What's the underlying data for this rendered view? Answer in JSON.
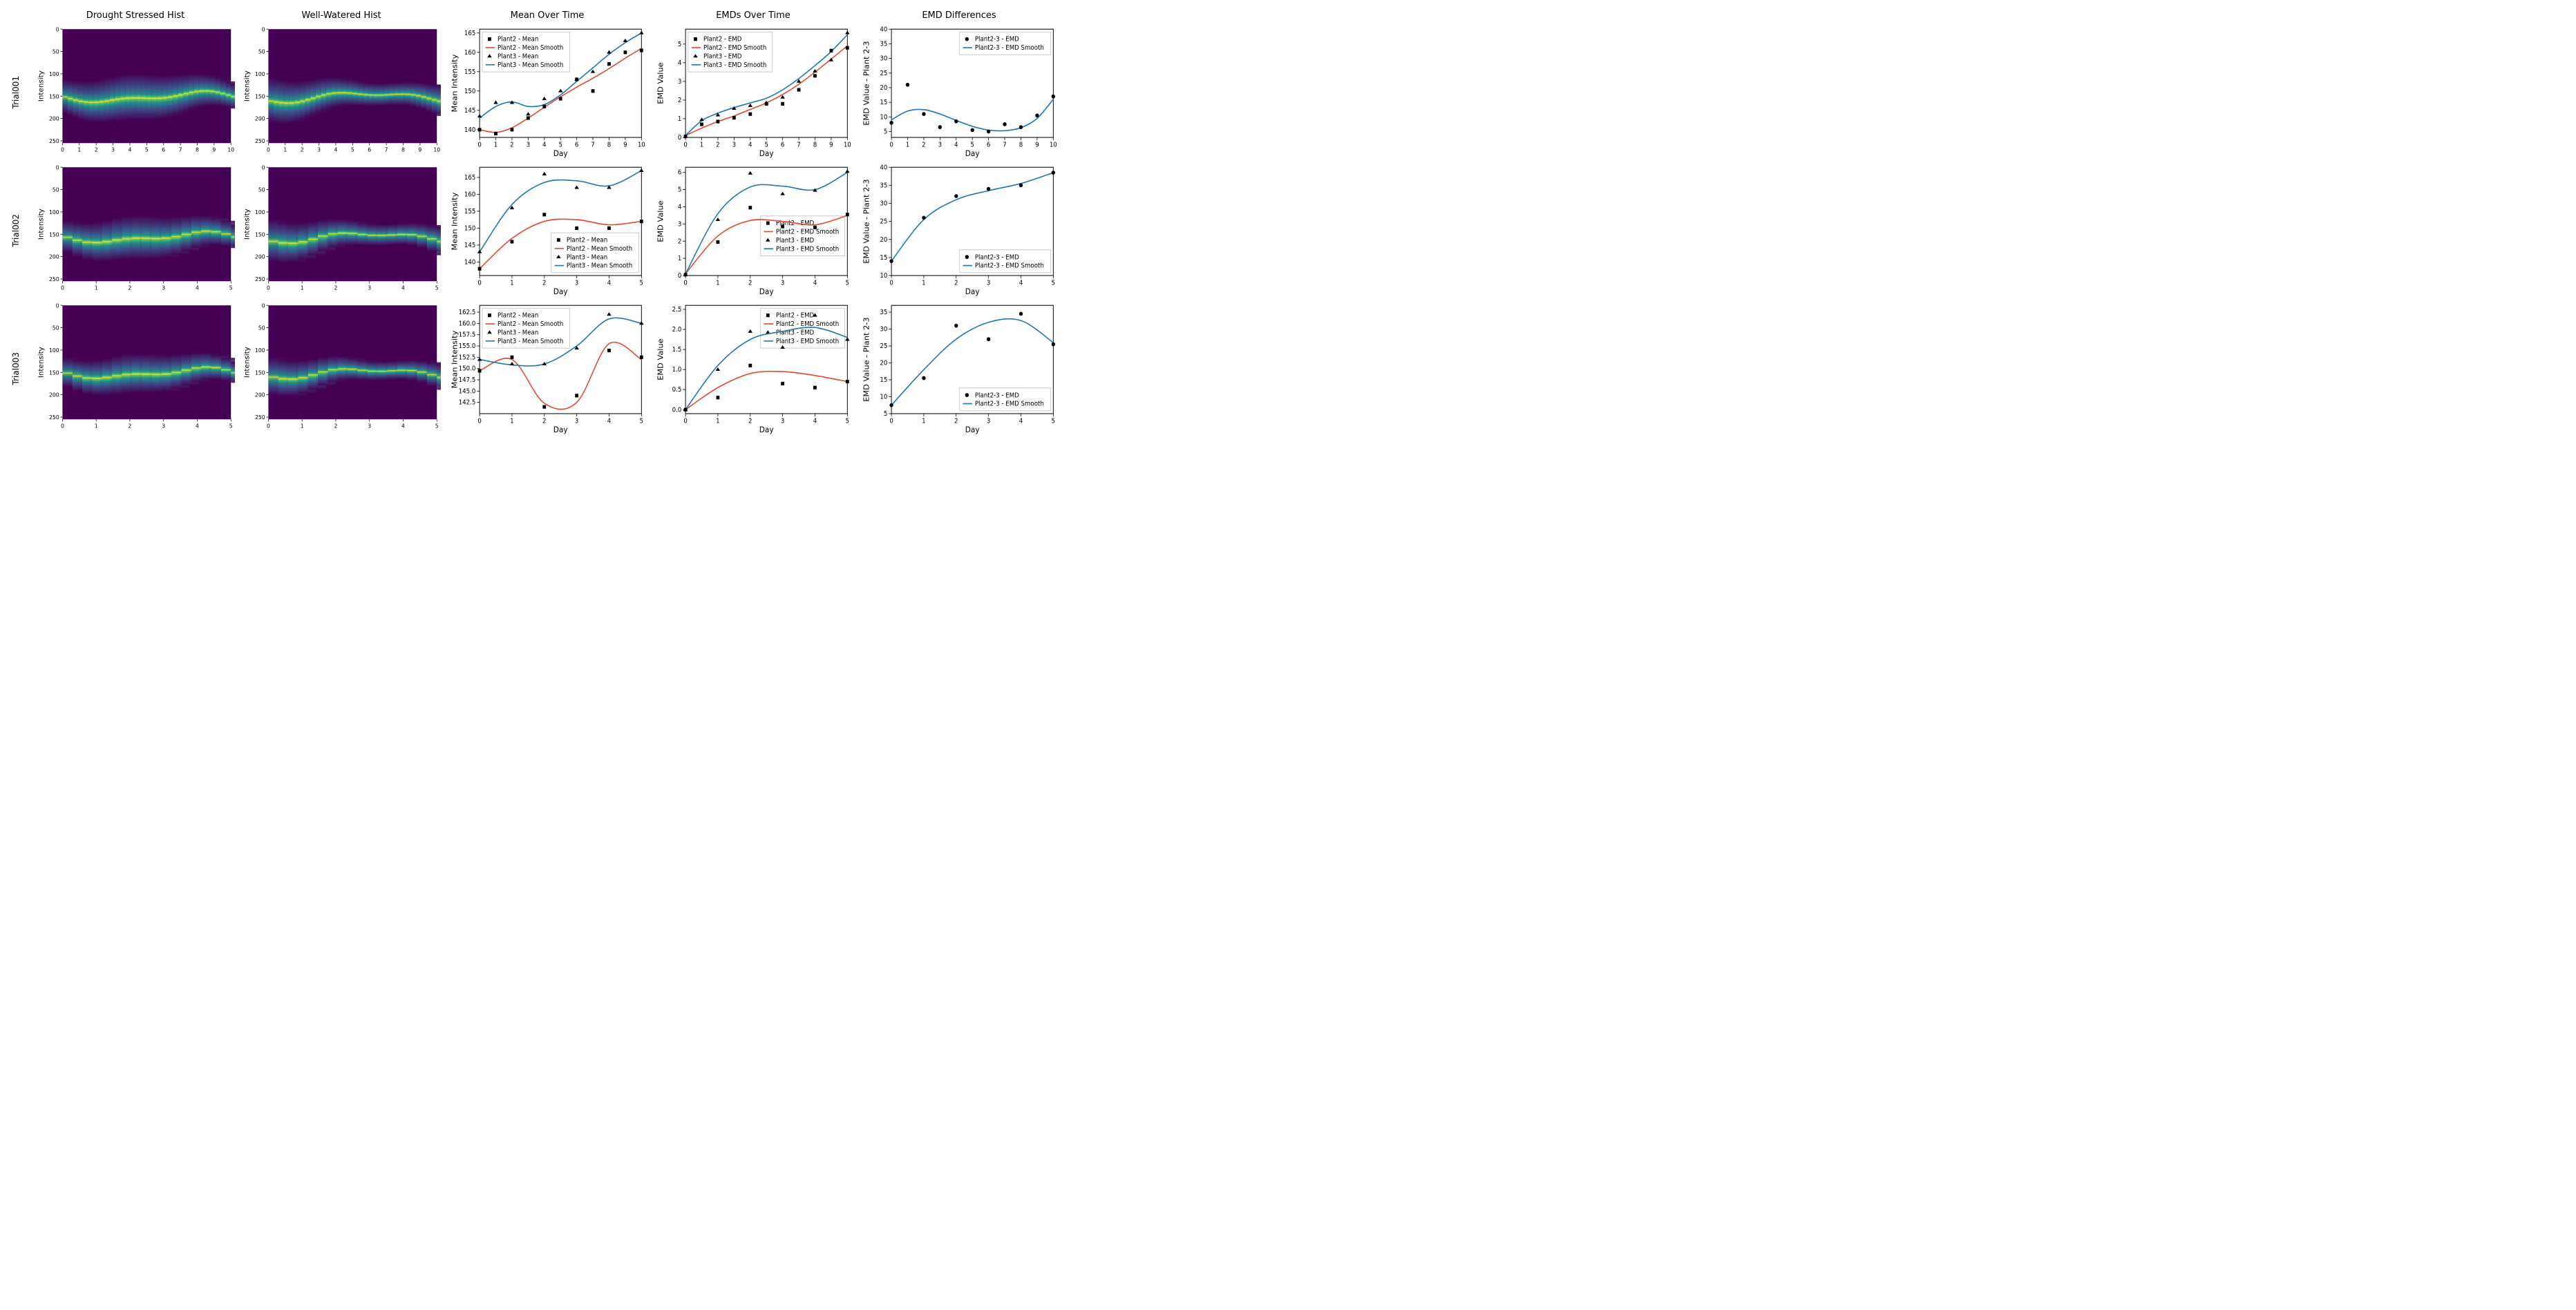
{
  "colors": {
    "background": "#ffffff",
    "text": "#000000",
    "frame": "#000000",
    "red": "#e24a33",
    "blue": "#1f77b4",
    "legend_border": "#bfbfbf",
    "viridis_bg": "#440154",
    "viridis_mid": "#21918c",
    "viridis_hi": "#fde725"
  },
  "col_titles": [
    "Drought Stressed Hist",
    "Well-Watered Hist",
    "Mean Over Time",
    "EMDs Over Time",
    "EMD Differences"
  ],
  "rows": [
    {
      "label": "Trial001",
      "days": 10,
      "heatmap": {
        "ylabel": "Intensity",
        "ylim": [
          0,
          255
        ],
        "yticks": [
          0,
          50,
          100,
          150,
          200,
          250
        ],
        "band_center": 150,
        "band_spread": 45
      },
      "mean": {
        "xlabel": "Day",
        "ylabel": "Mean Intensity",
        "xlim": [
          0,
          10
        ],
        "ylim": [
          138,
          166
        ],
        "yticks": [
          140,
          145,
          150,
          155,
          160,
          165
        ],
        "p2_points": [
          [
            0,
            140
          ],
          [
            1,
            139
          ],
          [
            2,
            140
          ],
          [
            3,
            143
          ],
          [
            4,
            146
          ],
          [
            5,
            148
          ],
          [
            6,
            153
          ],
          [
            7,
            150
          ],
          [
            8,
            157
          ],
          [
            9,
            160
          ],
          [
            10,
            160.5
          ]
        ],
        "p3_points": [
          [
            0,
            143.5
          ],
          [
            1,
            147
          ],
          [
            2,
            147
          ],
          [
            3,
            144
          ],
          [
            4,
            148
          ],
          [
            5,
            150
          ],
          [
            6,
            153
          ],
          [
            7,
            155
          ],
          [
            8,
            160
          ],
          [
            9,
            163
          ],
          [
            10,
            165
          ]
        ],
        "p2_smooth": [
          [
            0,
            140
          ],
          [
            1,
            139.3
          ],
          [
            2,
            140.5
          ],
          [
            3,
            143
          ],
          [
            4,
            145.8
          ],
          [
            5,
            148.5
          ],
          [
            6,
            151
          ],
          [
            7,
            153.3
          ],
          [
            8,
            155.8
          ],
          [
            9,
            158.5
          ],
          [
            10,
            161
          ]
        ],
        "p3_smooth": [
          [
            0,
            143
          ],
          [
            1,
            146
          ],
          [
            2,
            147.2
          ],
          [
            3,
            146
          ],
          [
            4,
            146.5
          ],
          [
            5,
            149
          ],
          [
            6,
            152.5
          ],
          [
            7,
            156
          ],
          [
            8,
            159.5
          ],
          [
            9,
            162.5
          ],
          [
            10,
            165
          ]
        ],
        "legend": [
          "Plant2 - Mean",
          "Plant2 - Mean Smooth",
          "Plant3 - Mean",
          "Plant3 - Mean Smooth"
        ],
        "legend_pos": "top-left"
      },
      "emd": {
        "xlabel": "Day",
        "ylabel": "EMD Value",
        "xlim": [
          0,
          10
        ],
        "ylim": [
          0,
          5.8
        ],
        "yticks": [
          0,
          1,
          2,
          3,
          4,
          5
        ],
        "p2_points": [
          [
            0,
            0.05
          ],
          [
            1,
            0.7
          ],
          [
            2,
            0.85
          ],
          [
            3,
            1.05
          ],
          [
            4,
            1.25
          ],
          [
            5,
            1.8
          ],
          [
            6,
            1.8
          ],
          [
            7,
            2.55
          ],
          [
            8,
            3.3
          ],
          [
            9,
            4.65
          ],
          [
            10,
            4.8
          ]
        ],
        "p3_points": [
          [
            0,
            0.05
          ],
          [
            1,
            0.95
          ],
          [
            2,
            1.2
          ],
          [
            3,
            1.55
          ],
          [
            4,
            1.7
          ],
          [
            5,
            1.85
          ],
          [
            6,
            2.15
          ],
          [
            7,
            3.0
          ],
          [
            8,
            3.55
          ],
          [
            9,
            4.15
          ],
          [
            10,
            5.6
          ]
        ],
        "p2_smooth": [
          [
            0,
            0.1
          ],
          [
            1,
            0.5
          ],
          [
            2,
            0.85
          ],
          [
            3,
            1.15
          ],
          [
            4,
            1.5
          ],
          [
            5,
            1.85
          ],
          [
            6,
            2.3
          ],
          [
            7,
            2.85
          ],
          [
            8,
            3.5
          ],
          [
            9,
            4.2
          ],
          [
            10,
            4.9
          ]
        ],
        "p3_smooth": [
          [
            0,
            0.1
          ],
          [
            1,
            0.9
          ],
          [
            2,
            1.3
          ],
          [
            3,
            1.6
          ],
          [
            4,
            1.85
          ],
          [
            5,
            2.1
          ],
          [
            6,
            2.55
          ],
          [
            7,
            3.15
          ],
          [
            8,
            3.85
          ],
          [
            9,
            4.6
          ],
          [
            10,
            5.5
          ]
        ],
        "legend": [
          "Plant2 - EMD",
          "Plant2 - EMD Smooth",
          "Plant3 - EMD",
          "Plant3 - EMD Smooth"
        ],
        "legend_pos": "top-left"
      },
      "diff": {
        "xlabel": "Day",
        "ylabel": "EMD Value - Plant 2-3",
        "xlim": [
          0,
          10
        ],
        "ylim": [
          3,
          40
        ],
        "yticks": [
          5,
          10,
          15,
          20,
          25,
          30,
          35,
          40
        ],
        "points": [
          [
            0,
            8
          ],
          [
            1,
            21
          ],
          [
            2,
            11
          ],
          [
            3,
            6.5
          ],
          [
            4,
            8.5
          ],
          [
            5,
            5.5
          ],
          [
            6,
            5
          ],
          [
            7,
            7.5
          ],
          [
            8,
            6.5
          ],
          [
            9,
            10.5
          ],
          [
            10,
            17
          ]
        ],
        "smooth": [
          [
            0,
            9
          ],
          [
            1,
            12
          ],
          [
            2,
            12.5
          ],
          [
            3,
            11
          ],
          [
            4,
            8.8
          ],
          [
            5,
            6.8
          ],
          [
            6,
            5.5
          ],
          [
            7,
            5.3
          ],
          [
            8,
            6.3
          ],
          [
            9,
            9.5
          ],
          [
            10,
            16
          ]
        ],
        "legend": [
          "Plant2-3 - EMD",
          "Plant2-3 - EMD Smooth"
        ],
        "legend_pos": "top-right"
      }
    },
    {
      "label": "Trial002",
      "days": 5,
      "heatmap": {
        "ylabel": "Intensity",
        "ylim": [
          0,
          255
        ],
        "yticks": [
          0,
          50,
          100,
          150,
          200,
          250
        ],
        "band_center": 155,
        "band_spread": 42
      },
      "mean": {
        "xlabel": "Day",
        "ylabel": "Mean Intensity",
        "xlim": [
          0,
          5
        ],
        "ylim": [
          136,
          168
        ],
        "yticks": [
          140,
          145,
          150,
          155,
          160,
          165
        ],
        "p2_points": [
          [
            0,
            138
          ],
          [
            1,
            146
          ],
          [
            2,
            154
          ],
          [
            3,
            150
          ],
          [
            4,
            150
          ],
          [
            5,
            152
          ]
        ],
        "p3_points": [
          [
            0,
            143
          ],
          [
            1,
            156
          ],
          [
            2,
            166
          ],
          [
            3,
            162
          ],
          [
            4,
            162
          ],
          [
            5,
            167
          ]
        ],
        "p2_smooth": [
          [
            0,
            138
          ],
          [
            1,
            147
          ],
          [
            2,
            152
          ],
          [
            3,
            152.5
          ],
          [
            4,
            151
          ],
          [
            5,
            152
          ]
        ],
        "p3_smooth": [
          [
            0,
            143
          ],
          [
            1,
            157
          ],
          [
            2,
            163.5
          ],
          [
            3,
            164
          ],
          [
            4,
            162.5
          ],
          [
            5,
            167
          ]
        ],
        "legend": [
          "Plant2 - Mean",
          "Plant2 - Mean Smooth",
          "Plant3 - Mean",
          "Plant3 - Mean Smooth"
        ],
        "legend_pos": "bottom-right"
      },
      "emd": {
        "xlabel": "Day",
        "ylabel": "EMD Value",
        "xlim": [
          0,
          5
        ],
        "ylim": [
          0,
          6.3
        ],
        "yticks": [
          0,
          1,
          2,
          3,
          4,
          5,
          6
        ],
        "p2_points": [
          [
            0,
            0.05
          ],
          [
            1,
            1.95
          ],
          [
            2,
            3.95
          ],
          [
            3,
            2.85
          ],
          [
            4,
            2.8
          ],
          [
            5,
            3.55
          ]
        ],
        "p3_points": [
          [
            0,
            0.05
          ],
          [
            1,
            3.25
          ],
          [
            2,
            5.95
          ],
          [
            3,
            4.75
          ],
          [
            4,
            4.95
          ],
          [
            5,
            6.05
          ]
        ],
        "p2_smooth": [
          [
            0,
            0.1
          ],
          [
            1,
            2.3
          ],
          [
            2,
            3.2
          ],
          [
            3,
            3.15
          ],
          [
            4,
            2.95
          ],
          [
            5,
            3.5
          ]
        ],
        "p3_smooth": [
          [
            0,
            0.1
          ],
          [
            1,
            3.6
          ],
          [
            2,
            5.15
          ],
          [
            3,
            5.2
          ],
          [
            4,
            5.0
          ],
          [
            5,
            6.0
          ]
        ],
        "legend": [
          "Plant2 - EMD",
          "Plant2 - EMD Smooth",
          "Plant3 - EMD",
          "Plant3 - EMD Smooth"
        ],
        "legend_pos": "bottom-right-stack"
      },
      "diff": {
        "xlabel": "Day",
        "ylabel": "EMD Value - Plant 2-3",
        "xlim": [
          0,
          5
        ],
        "ylim": [
          10,
          40
        ],
        "yticks": [
          10,
          15,
          20,
          25,
          30,
          35,
          40
        ],
        "points": [
          [
            0,
            14
          ],
          [
            1,
            26
          ],
          [
            2,
            32
          ],
          [
            3,
            34
          ],
          [
            4,
            35
          ],
          [
            5,
            38.5
          ]
        ],
        "smooth": [
          [
            0,
            14
          ],
          [
            1,
            25.5
          ],
          [
            2,
            31
          ],
          [
            3,
            33.5
          ],
          [
            4,
            35.5
          ],
          [
            5,
            38.5
          ]
        ],
        "legend": [
          "Plant2-3 - EMD",
          "Plant2-3 - EMD Smooth"
        ],
        "legend_pos": "bottom-right"
      }
    },
    {
      "label": "Trial003",
      "days": 5,
      "heatmap": {
        "ylabel": "Intensity",
        "ylim": [
          0,
          255
        ],
        "yticks": [
          0,
          50,
          100,
          150,
          200,
          250
        ],
        "band_center": 150,
        "band_spread": 38
      },
      "mean": {
        "xlabel": "Day",
        "ylabel": "Mean Intensity",
        "xlim": [
          0,
          5
        ],
        "ylim": [
          140,
          164
        ],
        "yticks": [
          142.5,
          145.0,
          147.5,
          150.0,
          152.5,
          155.0,
          157.5,
          160.0,
          162.5
        ],
        "p2_points": [
          [
            0,
            149.5
          ],
          [
            1,
            152.5
          ],
          [
            2,
            141.5
          ],
          [
            3,
            144
          ],
          [
            4,
            154
          ],
          [
            5,
            152.5
          ]
        ],
        "p3_points": [
          [
            0,
            152
          ],
          [
            1,
            151
          ],
          [
            2,
            151
          ],
          [
            3,
            154.5
          ],
          [
            4,
            162
          ],
          [
            5,
            160
          ]
        ],
        "p2_smooth": [
          [
            0,
            149.5
          ],
          [
            1,
            152
          ],
          [
            2,
            142.3
          ],
          [
            3,
            142.5
          ],
          [
            4,
            155.5
          ],
          [
            5,
            152
          ]
        ],
        "p3_smooth": [
          [
            0,
            152
          ],
          [
            1,
            150.8
          ],
          [
            2,
            151
          ],
          [
            3,
            155
          ],
          [
            4,
            161
          ],
          [
            5,
            160
          ]
        ],
        "legend": [
          "Plant2 - Mean",
          "Plant2 - Mean Smooth",
          "Plant3 - Mean",
          "Plant3 - Mean Smooth"
        ],
        "legend_pos": "top-left"
      },
      "emd": {
        "xlabel": "Day",
        "ylabel": "EMD Value",
        "xlim": [
          0,
          5
        ],
        "ylim": [
          -0.1,
          2.6
        ],
        "yticks": [
          0,
          0.5,
          1.0,
          1.5,
          2.0,
          2.5
        ],
        "p2_points": [
          [
            0,
            0.0
          ],
          [
            1,
            0.3
          ],
          [
            2,
            1.1
          ],
          [
            3,
            0.65
          ],
          [
            4,
            0.55
          ],
          [
            5,
            0.7
          ]
        ],
        "p3_points": [
          [
            0,
            0.0
          ],
          [
            1,
            1.0
          ],
          [
            2,
            1.95
          ],
          [
            3,
            1.55
          ],
          [
            4,
            2.35
          ],
          [
            5,
            1.75
          ]
        ],
        "p2_smooth": [
          [
            0,
            0.0
          ],
          [
            1,
            0.55
          ],
          [
            2,
            0.9
          ],
          [
            3,
            0.95
          ],
          [
            4,
            0.85
          ],
          [
            5,
            0.7
          ]
        ],
        "p3_smooth": [
          [
            0,
            0.0
          ],
          [
            1,
            1.1
          ],
          [
            2,
            1.75
          ],
          [
            3,
            1.95
          ],
          [
            4,
            2.05
          ],
          [
            5,
            1.8
          ]
        ],
        "legend": [
          "Plant2 - EMD",
          "Plant2 - EMD Smooth",
          "Plant3 - EMD",
          "Plant3 - EMD Smooth"
        ],
        "legend_pos": "top-right"
      },
      "diff": {
        "xlabel": "Day",
        "ylabel": "EMD Value - Plant 2-3",
        "xlim": [
          0,
          5
        ],
        "ylim": [
          5,
          37
        ],
        "yticks": [
          5,
          10,
          15,
          20,
          25,
          30,
          35
        ],
        "points": [
          [
            0,
            7.5
          ],
          [
            1,
            15.5
          ],
          [
            2,
            31
          ],
          [
            3,
            27
          ],
          [
            4,
            34.5
          ],
          [
            5,
            25.5
          ]
        ],
        "smooth": [
          [
            0,
            7.5
          ],
          [
            1,
            18
          ],
          [
            2,
            27
          ],
          [
            3,
            32
          ],
          [
            4,
            32.5
          ],
          [
            5,
            26
          ]
        ],
        "legend": [
          "Plant2-3 - EMD",
          "Plant2-3 - EMD Smooth"
        ],
        "legend_pos": "bottom-right"
      }
    }
  ]
}
